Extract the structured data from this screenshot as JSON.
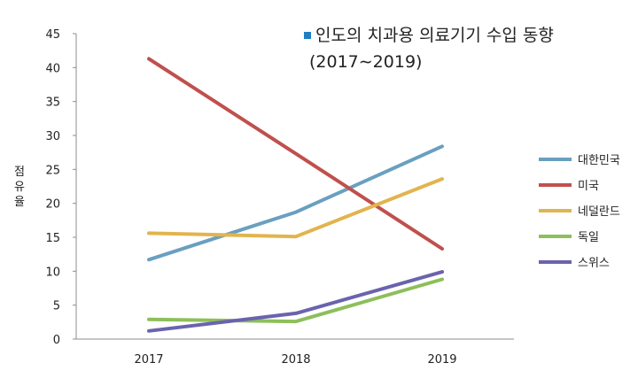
{
  "chart_data": {
    "type": "line",
    "title": "인도의 치과용 의료기기 수입 동향",
    "subtitle": "(2017∼2019)",
    "title_marker_color": "#1f7fc4",
    "xlabel": "",
    "ylabel": "점유율",
    "categories": [
      "2017",
      "2018",
      "2019"
    ],
    "ylim": [
      0,
      45
    ],
    "yticks": [
      0,
      5,
      10,
      15,
      20,
      25,
      30,
      35,
      40,
      45
    ],
    "grid": false,
    "legend_position": "right",
    "series": [
      {
        "name": "대한민국",
        "color": "#6a9fc0",
        "values": [
          11.7,
          18.7,
          28.4
        ]
      },
      {
        "name": "미국",
        "color": "#c0504d",
        "values": [
          41.3,
          27.3,
          13.3
        ]
      },
      {
        "name": "네덜란드",
        "color": "#e2b44e",
        "values": [
          15.6,
          15.1,
          23.6
        ]
      },
      {
        "name": "독일",
        "color": "#8dbf5a",
        "values": [
          2.9,
          2.6,
          8.8
        ]
      },
      {
        "name": "스위스",
        "color": "#6a63ad",
        "values": [
          1.2,
          3.8,
          9.9
        ]
      }
    ]
  }
}
